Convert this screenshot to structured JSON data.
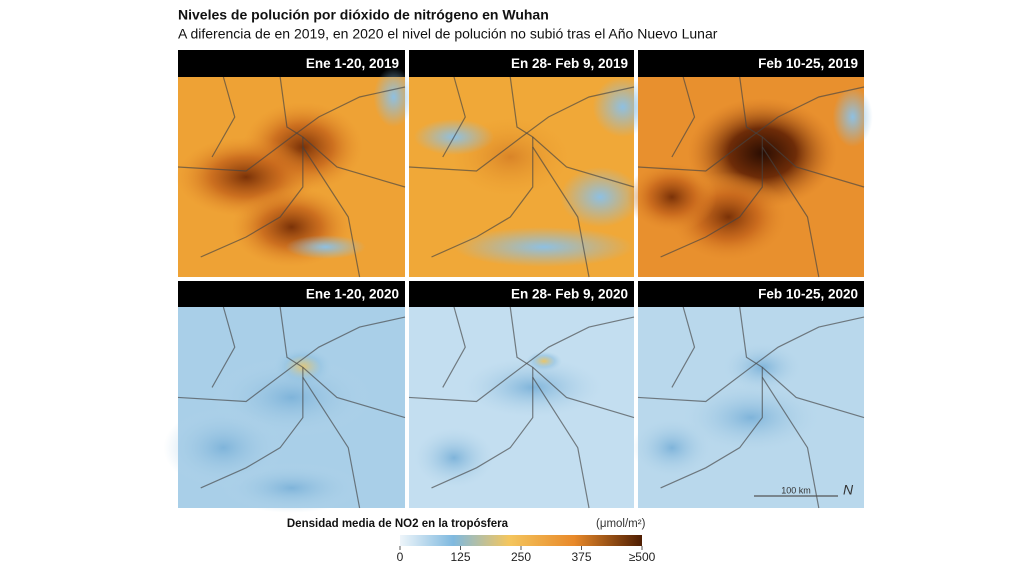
{
  "header": {
    "title": "Niveles de polución por dióxido de nitrógeno en Wuhan",
    "subtitle": "A diferencia de en 2019, en 2020 el nivel de polución no subió tras el Año Nuevo Lunar"
  },
  "panels": [
    {
      "label": "Ene 1-20, 2019"
    },
    {
      "label": "En 28- Feb 9, 2019"
    },
    {
      "label": "Feb 10-25, 2019"
    },
    {
      "label": "Ene 1-20, 2020"
    },
    {
      "label": "En 28- Feb 9, 2020"
    },
    {
      "label": "Feb 10-25, 2020"
    }
  ],
  "scale_bar": {
    "label": "100 km",
    "north": "N"
  },
  "legend": {
    "title": "Densidad media de NO2  en la tropósfera",
    "unit": "(μmol/m²)",
    "range": [
      0,
      500
    ],
    "ticks": [
      0,
      125,
      250,
      375,
      {
        "value": 500,
        "label": "≥500"
      }
    ]
  }
}
